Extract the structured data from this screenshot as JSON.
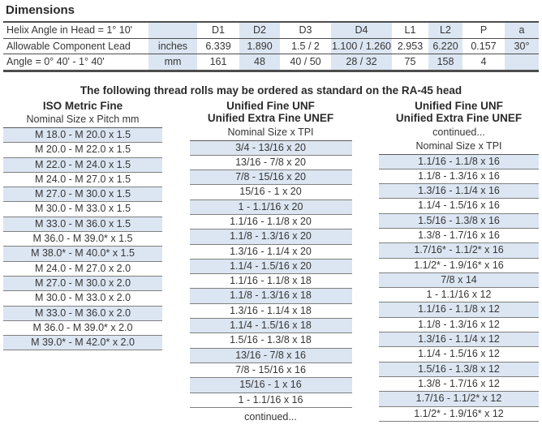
{
  "page": {
    "title": "Dimensions",
    "center_heading": "The following thread rolls may be ordered as standard on the RA-45 head"
  },
  "colors": {
    "row_shade": "#dce6f2",
    "table_line_dark": "#4d4d4d",
    "list_line": "#7f7f7f",
    "text": "#363636"
  },
  "dimensions_table": {
    "rows": [
      {
        "label": "Helix Angle in Head = 1° 10'",
        "unit": "",
        "values": [
          "D1",
          "D2",
          "D3",
          "D4",
          "L1",
          "L2",
          "P",
          "a"
        ]
      },
      {
        "label": "Allowable Component Lead",
        "unit": "inches",
        "values": [
          "6.339",
          "1.890",
          "1.5 / 2",
          "1.100 / 1.260",
          "2.953",
          "6.220",
          "0.157",
          "30°"
        ]
      },
      {
        "label": "Angle = 0° 40' - 1° 40'",
        "unit": "mm",
        "values": [
          "161",
          "48",
          "40 / 50",
          "28 / 32",
          "75",
          "158",
          "4",
          ""
        ]
      }
    ]
  },
  "lists": [
    {
      "heading": [
        "ISO Metric Fine"
      ],
      "subheading": "Nominal Size x Pitch mm",
      "rows": [
        "M 18.0 - M 20.0 x 1.5",
        "M 20.0 - M 22.0 x 1.5",
        "M 22.0 - M 24.0 x 1.5",
        "M 24.0 - M 27.0 x 1.5",
        "M 27.0 - M 30.0 x 1.5",
        "M 30.0 - M 33.0 x 1.5",
        "M 33.0 - M 36.0 x 1.5",
        "M 36.0 - M 39.0* x 1.5",
        "M 38.0* - M 40.0* x 1.5",
        "M 24.0 - M 27.0 x 2.0",
        "M 27.0 - M 30.0 x 2.0",
        "M 30.0 - M 33.0 x 2.0",
        "M 33.0 - M 36.0 x 2.0",
        "M 36.0 - M 39.0* x 2.0",
        "M 39.0* - M 42.0* x 2.0"
      ]
    },
    {
      "heading": [
        "Unified Fine UNF",
        "Unified Extra Fine UNEF"
      ],
      "subheading": "Nominal Size x TPI",
      "rows": [
        "3/4 - 13/16 x 20",
        "13/16 - 7/8 x 20",
        "7/8 - 15/16 x 20",
        "15/16 - 1 x 20",
        "1 - 1.1/16 x 20",
        "1.1/16 - 1.1/8 x 20",
        "1.1/8 - 1.3/16 x 20",
        "1.3/16 - 1.1/4 x 20",
        "1.1/4 - 1.5/16 x 20",
        "1.1/16 - 1.1/8 x 18",
        "1.1/8 - 1.3/16 x 18",
        "1.3/16 - 1.1/4 x 18",
        "1.1/4 - 1.5/16 x 18",
        "1.5/16 - 1.3/8 x 18",
        "13/16 - 7/8 x 16",
        "7/8 - 15/16 x 16",
        "15/16 - 1 x 16",
        "1 - 1.1/16 x 16"
      ],
      "footer": "continued..."
    },
    {
      "heading": [
        "Unified Fine UNF",
        "Unified Extra Fine UNEF"
      ],
      "pre_subheading": "continued...",
      "subheading": "Nominal Size x TPI",
      "rows": [
        "1.1/16 - 1.1/8 x 16",
        "1.1/8 - 1.3/16 x 16",
        "1.3/16 - 1.1/4 x 16",
        "1.1/4 - 1.5/16 x 16",
        "1.5/16 - 1.3/8 x 16",
        "1.3/8 - 1.7/16 x 16",
        "1.7/16* - 1.1/2* x 16",
        "1.1/2* - 1.9/16* x 16",
        "7/8 x 14",
        "1 - 1.1/16 x 12",
        "1.1/16 - 1.1/8 x 12",
        "1.1/8 - 1.3/16 x 12",
        "1.3/16 - 1.1/4 x 12",
        "1.1/4 - 1.5/16 x 12",
        "1.5/16 - 1.3/8 x 12",
        "1.3/8 - 1.7/16 x 12",
        "1.7/16 - 1.1/2* x 12",
        "1.1/2* - 1.9/16* x 12"
      ]
    }
  ]
}
